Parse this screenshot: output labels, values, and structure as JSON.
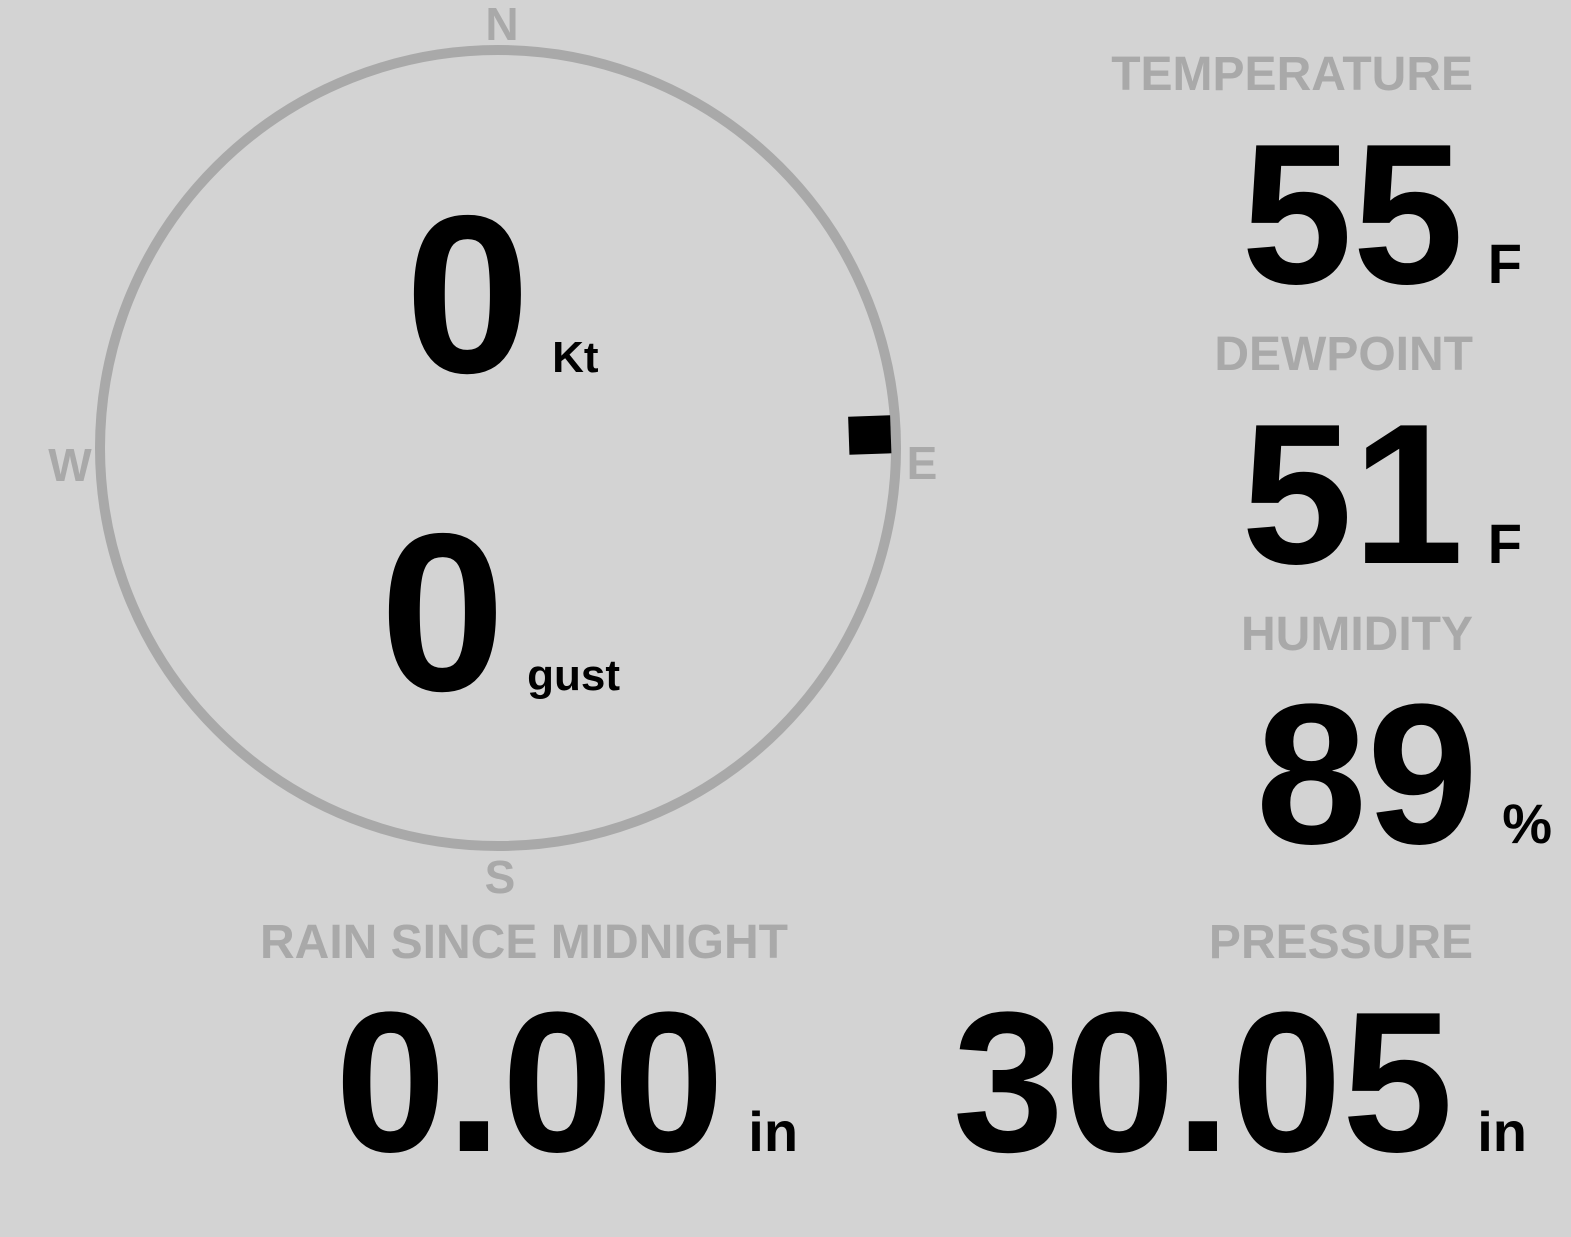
{
  "colors": {
    "background": "#d3d3d3",
    "muted": "#a9a9a9",
    "value": "#000000"
  },
  "compass": {
    "north": "N",
    "south": "S",
    "east": "E",
    "west": "W",
    "direction_deg": 88
  },
  "wind": {
    "speed": "0",
    "speed_unit": "Kt",
    "gust": "0",
    "gust_unit": "gust"
  },
  "temperature": {
    "label": "TEMPERATURE",
    "value": "55",
    "unit": "F"
  },
  "dewpoint": {
    "label": "DEWPOINT",
    "value": "51",
    "unit": "F"
  },
  "humidity": {
    "label": "HUMIDITY",
    "value": "89",
    "unit": "%"
  },
  "rain": {
    "label": "RAIN SINCE MIDNIGHT",
    "value": "0.00",
    "unit": "in"
  },
  "pressure": {
    "label": "PRESSURE",
    "value": "30.05",
    "unit": "in"
  }
}
